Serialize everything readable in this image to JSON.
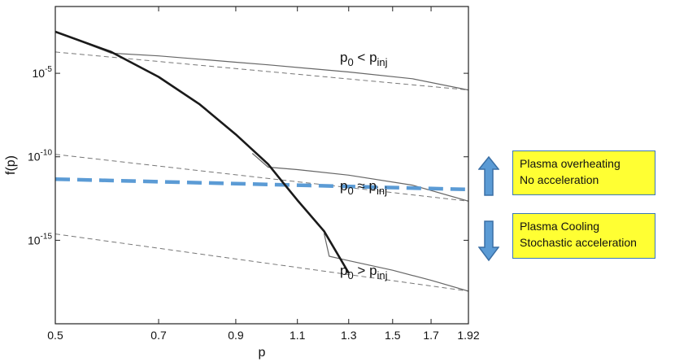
{
  "chart_data": {
    "type": "line",
    "title": "",
    "xlabel": "p",
    "ylabel": "f(p)",
    "xscale": "log",
    "yscale": "log",
    "xlim": [
      0.5,
      1.92
    ],
    "x_ticks": [
      0.5,
      0.7,
      0.9,
      1.1,
      1.3,
      1.5,
      1.7,
      1.92
    ],
    "x_tick_labels": [
      "0.5",
      "0.7",
      "0.9",
      "1.1",
      "1.3",
      "1.5",
      "1.7",
      "1.92"
    ],
    "y_ticks": [
      1e-05,
      1e-10,
      1e-15
    ],
    "y_tick_labels": [
      {
        "base": "10",
        "exp": "-5"
      },
      {
        "base": "10",
        "exp": "-10"
      },
      {
        "base": "10",
        "exp": "-15"
      }
    ],
    "ylim": [
      1e-20,
      0.1
    ],
    "grid": false,
    "series": [
      {
        "style": "solid-black-thick",
        "color": "#1a1a1a",
        "x": [
          0.5,
          0.6,
          0.7,
          0.8,
          0.9,
          1.0,
          1.05,
          1.1,
          1.2,
          1.3
        ],
        "y": [
          0.0031,
          0.00019,
          6.1e-06,
          1.4e-07,
          2.2e-09,
          3.6e-11,
          2.8e-12,
          2.5e-13,
          3.5e-15,
          1.1e-17
        ]
      },
      {
        "style": "dashed-gray",
        "color": "#777777",
        "x": [
          0.5,
          1.92
        ],
        "y": [
          0.00019,
          1e-06
        ]
      },
      {
        "style": "solid-gray",
        "color": "#666666",
        "x": [
          0.5,
          0.6,
          0.7,
          0.8,
          0.9,
          1.0,
          1.3,
          1.6,
          1.92
        ],
        "y": [
          0.0031,
          0.00016,
          0.00011,
          7e-05,
          4.6e-05,
          3.2e-05,
          1.2e-05,
          4.7e-06,
          1e-06
        ]
      },
      {
        "style": "dashed-gray",
        "color": "#777777",
        "x": [
          0.5,
          1.92
        ],
        "y": [
          1.4e-10,
          2.2e-13
        ]
      },
      {
        "style": "solid-gray",
        "color": "#666666",
        "x": [
          0.95,
          1.0,
          1.1,
          1.3,
          1.6,
          1.92
        ],
        "y": [
          1.6e-10,
          2.4e-11,
          1.7e-11,
          8e-12,
          2e-12,
          2.2e-13
        ]
      },
      {
        "style": "dashed-blue-thick",
        "color": "#5b9bd5",
        "x": [
          0.5,
          1.92
        ],
        "y": [
          4.6e-12,
          1.1e-12
        ]
      },
      {
        "style": "dashed-gray",
        "color": "#777777",
        "x": [
          0.5,
          1.92
        ],
        "y": [
          2.4e-15,
          9e-19
        ]
      },
      {
        "style": "solid-gray",
        "color": "#666666",
        "x": [
          1.2,
          1.22,
          1.3,
          1.5,
          1.7,
          1.92
        ],
        "y": [
          2.6e-15,
          1.1e-16,
          6e-17,
          1.6e-17,
          4e-18,
          9e-19
        ]
      }
    ],
    "annotations": [
      {
        "lhs": "p",
        "lhs_sub": "0",
        "op": "<",
        "rhs": "p",
        "rhs_sub": "inj"
      },
      {
        "lhs": "p",
        "lhs_sub": "0",
        "op": "≈",
        "rhs": "p",
        "rhs_sub": "inj"
      },
      {
        "lhs": "p",
        "lhs_sub": "0",
        "op": ">",
        "rhs": "p",
        "rhs_sub": "inj"
      }
    ]
  },
  "callouts": {
    "top": {
      "line1": "Plasma overheating",
      "line2": "No acceleration",
      "arrow": "up-arrow"
    },
    "bottom": {
      "line1": "Plasma Cooling",
      "line2": "Stochastic acceleration",
      "arrow": "down-arrow"
    }
  },
  "colors": {
    "callout_bg": "#ffff33",
    "arrow": "#5b9bd5",
    "blue_dashed": "#5b9bd5"
  }
}
